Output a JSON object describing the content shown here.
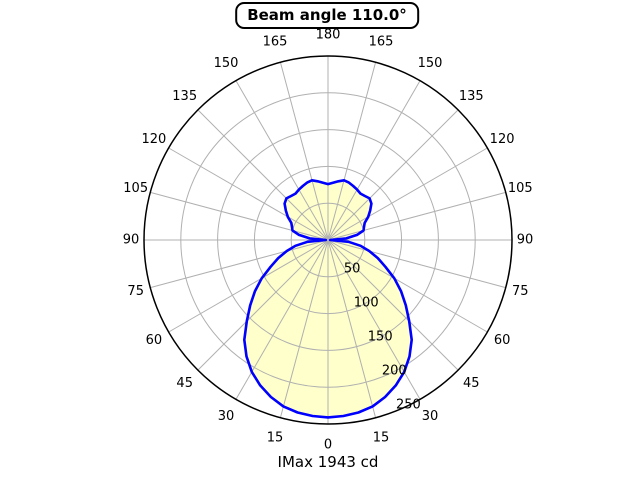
{
  "title": {
    "text": "Beam angle 110.0°"
  },
  "caption": {
    "text": "IMax 1943 cd"
  },
  "style": {
    "background": "#ffffff",
    "curve_color": "#0000ff",
    "fill_color": "#ffffcc",
    "grid_color": "#b0b0b0",
    "axis_color": "#000000",
    "text_color": "#000000"
  },
  "chart_data": {
    "type": "line",
    "subtype": "polar-intensity-distribution",
    "title": "Beam angle 110.0°",
    "caption": "IMax 1943 cd",
    "beam_angle_deg": 110.0,
    "imax_cd": 1943,
    "angle_convention": "0 = nadir (bottom of plot), 180 = zenith (top of plot), curve mirrored left/right",
    "angular_ticks": [
      0,
      15,
      30,
      45,
      60,
      75,
      90,
      105,
      120,
      135,
      150,
      165,
      180
    ],
    "radial_ticks": [
      50,
      100,
      150,
      200,
      250
    ],
    "rmax": 250,
    "grid": true,
    "legend": false,
    "series": [
      {
        "name": "luminous-intensity-curve",
        "color": "#0000ff",
        "fill": "#ffffcc",
        "points_angle_value": [
          [
            0,
            241
          ],
          [
            5,
            240
          ],
          [
            10,
            238
          ],
          [
            15,
            234
          ],
          [
            20,
            227
          ],
          [
            25,
            218
          ],
          [
            30,
            207
          ],
          [
            35,
            193
          ],
          [
            40,
            177
          ],
          [
            45,
            156
          ],
          [
            50,
            138
          ],
          [
            55,
            121
          ],
          [
            60,
            104
          ],
          [
            65,
            86
          ],
          [
            70,
            72
          ],
          [
            75,
            58
          ],
          [
            80,
            45
          ],
          [
            85,
            28
          ],
          [
            90,
            3
          ],
          [
            95,
            25
          ],
          [
            100,
            40
          ],
          [
            105,
            50
          ],
          [
            110,
            52
          ],
          [
            115,
            55
          ],
          [
            120,
            63
          ],
          [
            125,
            70
          ],
          [
            130,
            77
          ],
          [
            135,
            80
          ],
          [
            140,
            78
          ],
          [
            145,
            77
          ],
          [
            150,
            79
          ],
          [
            155,
            81
          ],
          [
            160,
            83
          ],
          [
            165,
            84
          ],
          [
            170,
            81
          ],
          [
            175,
            78
          ],
          [
            180,
            76
          ]
        ]
      }
    ]
  }
}
